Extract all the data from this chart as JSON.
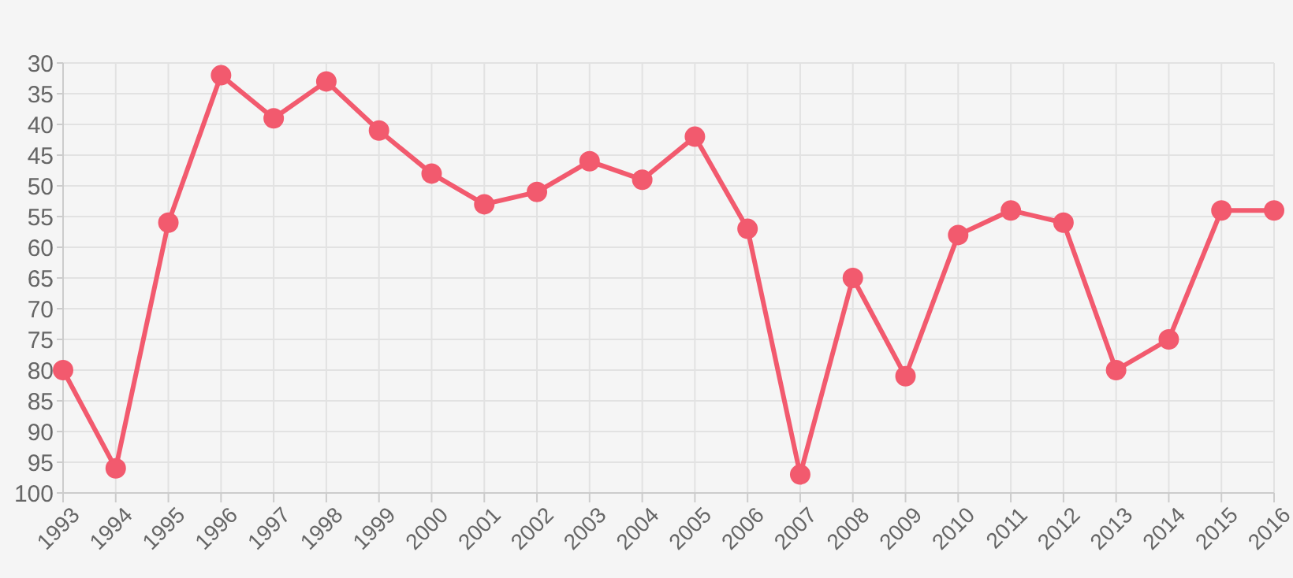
{
  "chart_data": {
    "type": "line",
    "categories": [
      "1993",
      "1994",
      "1995",
      "1996",
      "1997",
      "1998",
      "1999",
      "2000",
      "2001",
      "2002",
      "2003",
      "2004",
      "2005",
      "2006",
      "2007",
      "2008",
      "2009",
      "2010",
      "2011",
      "2012",
      "2013",
      "2014",
      "2015",
      "2016"
    ],
    "series": [
      {
        "color": "#f25a6e",
        "values": [
          80,
          96,
          56,
          32,
          39,
          33,
          41,
          48,
          53,
          51,
          46,
          49,
          42,
          57,
          97,
          65,
          81,
          58,
          54,
          56,
          80,
          75,
          54,
          54
        ]
      }
    ],
    "ylim": [
      100,
      30
    ],
    "yticks": [
      30,
      35,
      40,
      45,
      50,
      55,
      60,
      65,
      70,
      75,
      80,
      85,
      90,
      95,
      100
    ],
    "grid": true,
    "legend": false,
    "marker": "circle",
    "line_style": "solid"
  }
}
